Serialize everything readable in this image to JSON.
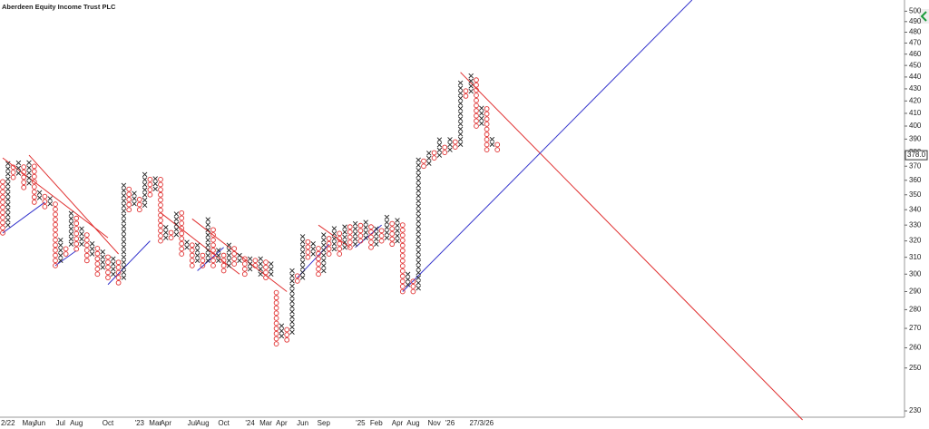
{
  "chart_data": {
    "type": "point-and-figure",
    "title": "Aberdeen Equity Income Trust PLC",
    "log_scale": true,
    "box_size_pct": 1,
    "x_color": "#222222",
    "o_color": "#e03030",
    "ylim": [
      226,
      511
    ],
    "yticks": [
      230,
      250,
      260,
      270,
      280,
      290,
      300,
      310,
      320,
      330,
      340,
      350,
      360,
      370,
      380,
      390,
      400,
      410,
      420,
      430,
      440,
      450,
      460,
      470,
      480,
      490,
      500
    ],
    "last_price": {
      "value": 378,
      "label": "378.0"
    },
    "columns": [
      {
        "type": "O",
        "low": 325,
        "high": 362
      },
      {
        "type": "X",
        "low": 330,
        "high": 372
      },
      {
        "type": "O",
        "low": 362,
        "high": 370
      },
      {
        "type": "X",
        "low": 365,
        "high": 376
      },
      {
        "type": "O",
        "low": 355,
        "high": 372
      },
      {
        "type": "X",
        "low": 358,
        "high": 376
      },
      {
        "type": "O",
        "low": 345,
        "high": 372
      },
      {
        "type": "X",
        "low": 348,
        "high": 354
      },
      {
        "type": "O",
        "low": 342,
        "high": 350
      },
      {
        "type": "X",
        "low": 344,
        "high": 348
      },
      {
        "type": "O",
        "low": 305,
        "high": 345
      },
      {
        "type": "X",
        "low": 308,
        "high": 322
      },
      {
        "type": "O",
        "low": 312,
        "high": 318
      },
      {
        "type": "X",
        "low": 318,
        "high": 340
      },
      {
        "type": "O",
        "low": 315,
        "high": 336
      },
      {
        "type": "X",
        "low": 318,
        "high": 330
      },
      {
        "type": "O",
        "low": 308,
        "high": 326
      },
      {
        "type": "X",
        "low": 312,
        "high": 320
      },
      {
        "type": "O",
        "low": 300,
        "high": 318
      },
      {
        "type": "X",
        "low": 304,
        "high": 314
      },
      {
        "type": "O",
        "low": 298,
        "high": 312
      },
      {
        "type": "X",
        "low": 300,
        "high": 310
      },
      {
        "type": "O",
        "low": 295,
        "high": 310
      },
      {
        "type": "X",
        "low": 298,
        "high": 358
      },
      {
        "type": "O",
        "low": 340,
        "high": 354
      },
      {
        "type": "X",
        "low": 344,
        "high": 352
      },
      {
        "type": "O",
        "low": 340,
        "high": 350
      },
      {
        "type": "X",
        "low": 343,
        "high": 366
      },
      {
        "type": "O",
        "low": 350,
        "high": 362
      },
      {
        "type": "X",
        "low": 354,
        "high": 364
      },
      {
        "type": "O",
        "low": 320,
        "high": 362
      },
      {
        "type": "X",
        "low": 322,
        "high": 330
      },
      {
        "type": "O",
        "low": 322,
        "high": 328
      },
      {
        "type": "X",
        "low": 324,
        "high": 340
      },
      {
        "type": "O",
        "low": 312,
        "high": 338
      },
      {
        "type": "X",
        "low": 316,
        "high": 322
      },
      {
        "type": "O",
        "low": 305,
        "high": 320
      },
      {
        "type": "X",
        "low": 308,
        "high": 318
      },
      {
        "type": "O",
        "low": 305,
        "high": 314
      },
      {
        "type": "X",
        "low": 308,
        "high": 334
      },
      {
        "type": "O",
        "low": 305,
        "high": 330
      },
      {
        "type": "X",
        "low": 308,
        "high": 316
      },
      {
        "type": "O",
        "low": 302,
        "high": 314
      },
      {
        "type": "X",
        "low": 305,
        "high": 320
      },
      {
        "type": "O",
        "low": 306,
        "high": 318
      },
      {
        "type": "X",
        "low": 308,
        "high": 314
      },
      {
        "type": "O",
        "low": 300,
        "high": 312
      },
      {
        "type": "X",
        "low": 303,
        "high": 312
      },
      {
        "type": "O",
        "low": 305,
        "high": 310
      },
      {
        "type": "X",
        "low": 300,
        "high": 312
      },
      {
        "type": "O",
        "low": 298,
        "high": 308
      },
      {
        "type": "X",
        "low": 300,
        "high": 306
      },
      {
        "type": "O",
        "low": 262,
        "high": 290
      },
      {
        "type": "X",
        "low": 266,
        "high": 272
      },
      {
        "type": "O",
        "low": 264,
        "high": 270
      },
      {
        "type": "X",
        "low": 268,
        "high": 302
      },
      {
        "type": "O",
        "low": 296,
        "high": 300
      },
      {
        "type": "X",
        "low": 298,
        "high": 324
      },
      {
        "type": "O",
        "low": 310,
        "high": 322
      },
      {
        "type": "X",
        "low": 312,
        "high": 320
      },
      {
        "type": "O",
        "low": 300,
        "high": 316
      },
      {
        "type": "X",
        "low": 302,
        "high": 326
      },
      {
        "type": "O",
        "low": 312,
        "high": 324
      },
      {
        "type": "X",
        "low": 315,
        "high": 330
      },
      {
        "type": "O",
        "low": 312,
        "high": 326
      },
      {
        "type": "X",
        "low": 316,
        "high": 332
      },
      {
        "type": "O",
        "low": 316,
        "high": 330
      },
      {
        "type": "X",
        "low": 318,
        "high": 334
      },
      {
        "type": "O",
        "low": 320,
        "high": 330
      },
      {
        "type": "X",
        "low": 322,
        "high": 334
      },
      {
        "type": "O",
        "low": 316,
        "high": 330
      },
      {
        "type": "X",
        "low": 318,
        "high": 330
      },
      {
        "type": "O",
        "low": 320,
        "high": 328
      },
      {
        "type": "X",
        "low": 322,
        "high": 336
      },
      {
        "type": "O",
        "low": 318,
        "high": 334
      },
      {
        "type": "X",
        "low": 320,
        "high": 334
      },
      {
        "type": "O",
        "low": 290,
        "high": 332
      },
      {
        "type": "X",
        "low": 294,
        "high": 300
      },
      {
        "type": "O",
        "low": 290,
        "high": 298
      },
      {
        "type": "X",
        "low": 292,
        "high": 378
      },
      {
        "type": "O",
        "low": 370,
        "high": 376
      },
      {
        "type": "X",
        "low": 372,
        "high": 382
      },
      {
        "type": "O",
        "low": 376,
        "high": 380
      },
      {
        "type": "X",
        "low": 378,
        "high": 390
      },
      {
        "type": "O",
        "low": 380,
        "high": 386
      },
      {
        "type": "X",
        "low": 382,
        "high": 390
      },
      {
        "type": "O",
        "low": 384,
        "high": 388
      },
      {
        "type": "X",
        "low": 386,
        "high": 436
      },
      {
        "type": "O",
        "low": 424,
        "high": 430
      },
      {
        "type": "X",
        "low": 428,
        "high": 444
      },
      {
        "type": "O",
        "low": 400,
        "high": 440
      },
      {
        "type": "X",
        "low": 402,
        "high": 418
      },
      {
        "type": "O",
        "low": 382,
        "high": 414
      },
      {
        "type": "X",
        "low": 386,
        "high": 390
      },
      {
        "type": "O",
        "low": 382,
        "high": 388
      }
    ],
    "categories": [
      null,
      "2/22",
      null,
      null,
      null,
      "May",
      null,
      "Jun",
      null,
      null,
      null,
      "Jul",
      null,
      null,
      "Aug",
      null,
      null,
      null,
      null,
      null,
      "Oct",
      null,
      null,
      null,
      null,
      null,
      "'23",
      null,
      null,
      "Mar",
      null,
      "Apr",
      null,
      null,
      null,
      null,
      "Jul",
      null,
      "Aug",
      null,
      null,
      null,
      "Oct",
      null,
      null,
      null,
      null,
      "'24",
      null,
      null,
      "Mar",
      null,
      null,
      "Apr",
      null,
      null,
      null,
      "Jun",
      null,
      null,
      null,
      "Sep",
      null,
      null,
      null,
      null,
      null,
      null,
      "'25",
      null,
      null,
      "Feb",
      null,
      null,
      null,
      "Apr",
      null,
      null,
      "Aug",
      null,
      null,
      null,
      "Nov",
      null,
      null,
      "'26",
      null,
      null,
      null,
      null,
      null,
      "27/3/26"
    ],
    "trendlines": [
      {
        "color": "#e03030",
        "from": {
          "col": 0,
          "value": 376
        },
        "to": {
          "col": 20,
          "value": 322
        }
      },
      {
        "color": "#e03030",
        "from": {
          "col": 5,
          "value": 378
        },
        "to": {
          "col": 22,
          "value": 312
        }
      },
      {
        "color": "#e03030",
        "from": {
          "col": 30,
          "value": 338
        },
        "to": {
          "col": 45,
          "value": 300
        }
      },
      {
        "color": "#e03030",
        "from": {
          "col": 36,
          "value": 334
        },
        "to": {
          "col": 54,
          "value": 290
        }
      },
      {
        "color": "#e03030",
        "from": {
          "col": 60,
          "value": 330
        },
        "to": {
          "col": 66,
          "value": 316
        }
      },
      {
        "color": "#e03030",
        "from": {
          "col": 87,
          "value": 444
        },
        "to": {
          "col": 152,
          "value": 226
        }
      },
      {
        "color": "#3333cc",
        "from": {
          "col": 0,
          "value": 325
        },
        "to": {
          "col": 8,
          "value": 345
        }
      },
      {
        "color": "#3333cc",
        "from": {
          "col": 10,
          "value": 305
        },
        "to": {
          "col": 14,
          "value": 314
        }
      },
      {
        "color": "#3333cc",
        "from": {
          "col": 20,
          "value": 294
        },
        "to": {
          "col": 28,
          "value": 320
        }
      },
      {
        "color": "#3333cc",
        "from": {
          "col": 37,
          "value": 302
        },
        "to": {
          "col": 42,
          "value": 316
        }
      },
      {
        "color": "#3333cc",
        "from": {
          "col": 56,
          "value": 298
        },
        "to": {
          "col": 62,
          "value": 318
        }
      },
      {
        "color": "#3333cc",
        "from": {
          "col": 67,
          "value": 316
        },
        "to": {
          "col": 72,
          "value": 330
        }
      },
      {
        "color": "#3333cc",
        "from": {
          "col": 76,
          "value": 290
        },
        "to": {
          "col": 131,
          "value": 511
        }
      }
    ]
  }
}
